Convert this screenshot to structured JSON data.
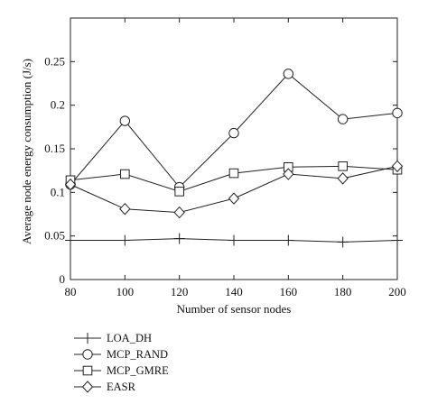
{
  "chart_data": {
    "type": "line",
    "xlabel": "Number of sensor nodes",
    "ylabel": "Average node energy consumption (J/s)",
    "x": [
      80,
      100,
      120,
      140,
      160,
      180,
      200
    ],
    "xlim": [
      80,
      200
    ],
    "ylim": [
      0,
      0.3
    ],
    "xticks": [
      "80",
      "100",
      "120",
      "140",
      "160",
      "180",
      "200"
    ],
    "yticks": [
      "0",
      "0.05",
      "0.1",
      "0.15",
      "0.2",
      "0.25"
    ],
    "ytick_values": [
      0,
      0.05,
      0.1,
      0.15,
      0.2,
      0.25
    ],
    "grid": false,
    "legend_position": "below",
    "series": [
      {
        "name": "LOA_DH",
        "marker": "plus",
        "values": [
          0.045,
          0.045,
          0.047,
          0.045,
          0.045,
          0.043,
          0.045
        ]
      },
      {
        "name": "MCP_RAND",
        "marker": "circle",
        "values": [
          0.109,
          0.182,
          0.106,
          0.168,
          0.236,
          0.184,
          0.191
        ]
      },
      {
        "name": "MCP_GMRE",
        "marker": "square",
        "values": [
          0.114,
          0.121,
          0.101,
          0.122,
          0.129,
          0.13,
          0.126
        ]
      },
      {
        "name": "EASR",
        "marker": "diamond",
        "values": [
          0.109,
          0.081,
          0.077,
          0.093,
          0.121,
          0.116,
          0.13
        ]
      }
    ]
  }
}
